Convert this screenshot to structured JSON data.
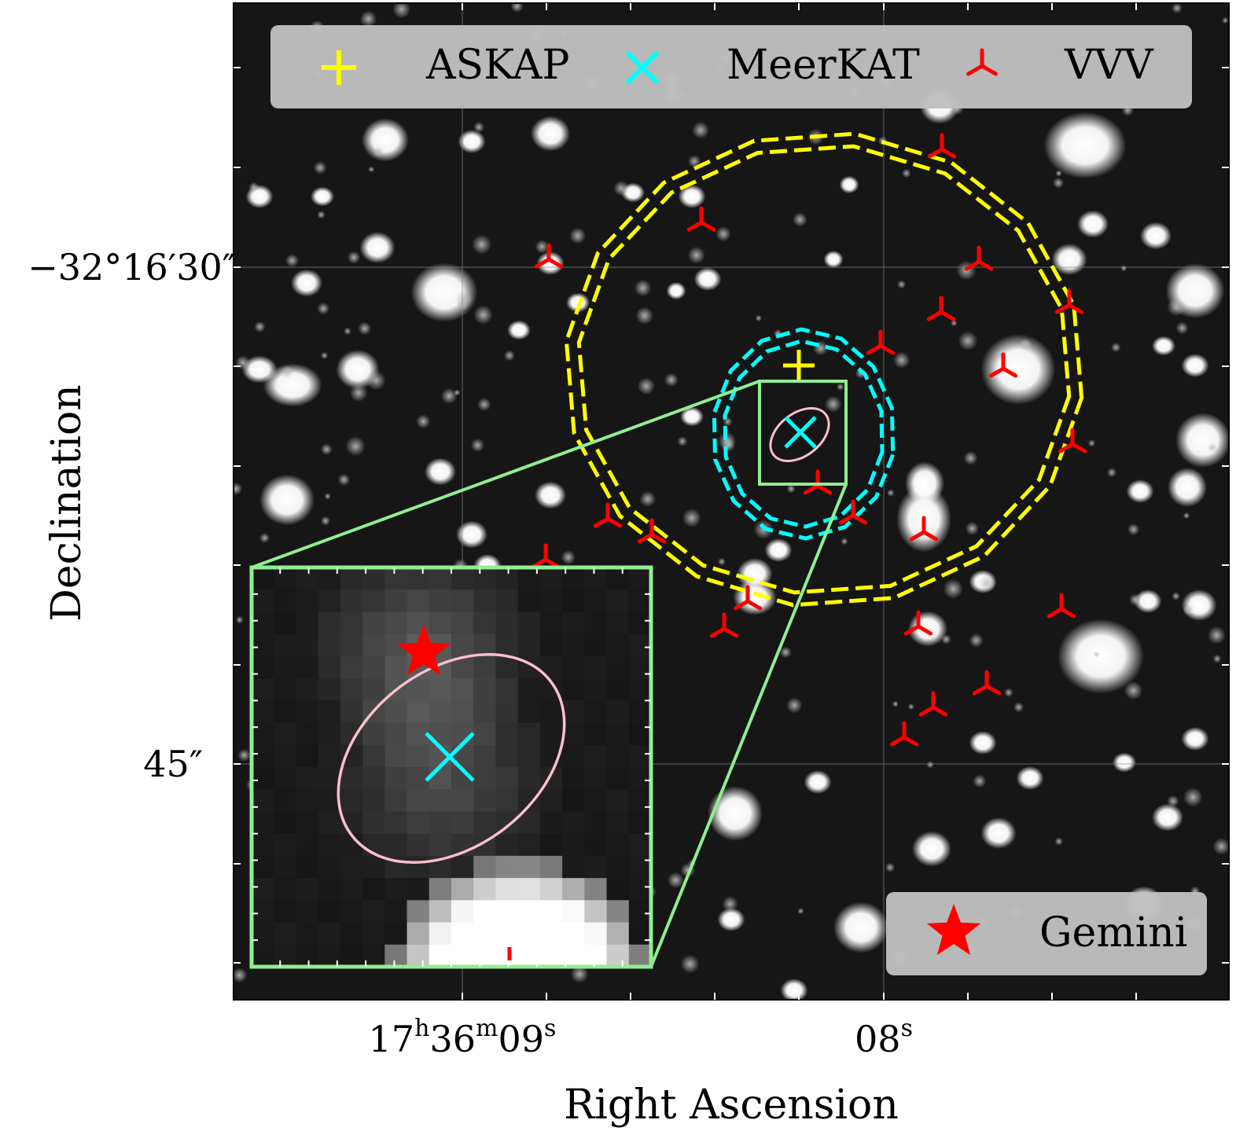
{
  "chart_data": {
    "type": "scatter",
    "subtype": "astronomical-finding-chart",
    "xlabel": "Right Ascension",
    "ylabel": "Declination",
    "x_ticks": [
      {
        "label": "17h36m09s",
        "parts": [
          "17",
          "h",
          "36",
          "m",
          "09",
          "s"
        ]
      },
      {
        "label": "08s",
        "parts": [
          "08",
          "s"
        ]
      }
    ],
    "y_ticks": [
      {
        "label": "−32°16′30″"
      },
      {
        "label": "45″"
      }
    ],
    "legend_top": [
      {
        "name": "ASKAP",
        "marker": "plus",
        "color": "#ffff00"
      },
      {
        "name": "MeerKAT",
        "marker": "x",
        "color": "#00ffff"
      },
      {
        "name": "VVV",
        "marker": "tri_down",
        "color": "#ff0000"
      }
    ],
    "legend_inset": [
      {
        "name": "Gemini",
        "marker": "star",
        "color": "#ff0000"
      }
    ],
    "colors": {
      "askap": "#ffff00",
      "meerkat": "#00ffff",
      "vvv": "#ff0000",
      "gemini": "#ff0000",
      "inset_frame": "#90ee90",
      "error_ellipse": "#ffc0cb",
      "legend_bg": "#bfbfbf"
    },
    "axis_ranges_sec": {
      "dec_tick_spacing_arcsec": 15,
      "ra_tick_spacing_s": 1
    },
    "sources": {
      "askap": {
        "count": 1
      },
      "meerkat": {
        "count": 1
      },
      "vvv": {
        "count": 22
      },
      "gemini": {
        "count": 1
      }
    }
  }
}
